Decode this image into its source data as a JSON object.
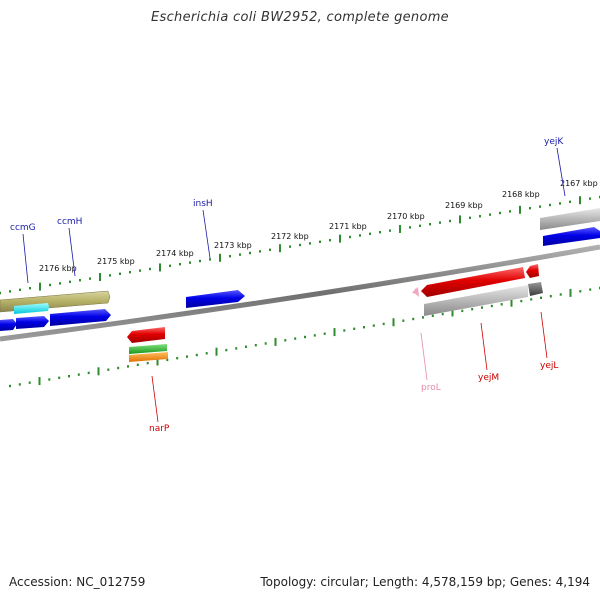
{
  "title": "Escherichia coli BW2952, complete genome",
  "footer": {
    "accession": "Accession: NC_012759",
    "summary": "Topology: circular; Length: 4,578,159 bp; Genes: 4,194"
  },
  "scale_labels": [
    "2167 kbp",
    "2168 kbp",
    "2169 kbp",
    "2170 kbp",
    "2171 kbp",
    "2172 kbp",
    "2173 kbp",
    "2174 kbp",
    "2175 kbp",
    "2176 kbp"
  ],
  "gene_labels": {
    "ccmG": "ccmG",
    "ccmH": "ccmH",
    "insH": "insH",
    "yejK": "yejK",
    "narP": "narP",
    "proL": "proL",
    "yejM": "yejM",
    "yejL": "yejL"
  },
  "colors": {
    "forward_label": "#1a1aa8",
    "reverse_label": "#cc0000",
    "rna_label": "#e88aa8",
    "tick": "#2e8b2e",
    "backbone": "#808080",
    "blue_gene": "#0000e6",
    "red_gene": "#e00000",
    "olive_gene": "#b5b066",
    "grey_gene": "#b8b8b8",
    "cyan_gene": "#00e5ee",
    "green_gene": "#2fb52f",
    "orange_gene": "#f08a00",
    "pink_gene": "#f3a6c0"
  }
}
